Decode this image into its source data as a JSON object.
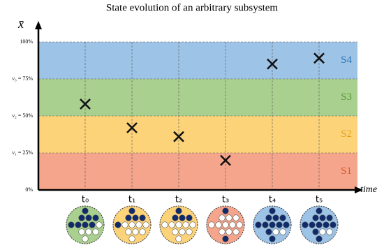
{
  "chart_data": {
    "type": "scatter",
    "title": "State evolution of an arbitrary subsystem",
    "y_label": "x̄",
    "x_label": "time",
    "categories": [
      "t₀",
      "t₁",
      "t₂",
      "t₃",
      "t₄",
      "t₅"
    ],
    "values": [
      58,
      42,
      36,
      20,
      85,
      89
    ],
    "ylim": [
      0,
      100
    ],
    "yticks": [
      {
        "value": 0,
        "label": "0%"
      },
      {
        "value": 25,
        "label": "ν₁ = 25%"
      },
      {
        "value": 50,
        "label": "ν₂ = 50%"
      },
      {
        "value": 75,
        "label": "ν₃ = 75%"
      },
      {
        "value": 100,
        "label": "100%"
      }
    ],
    "bands": [
      {
        "name": "S1",
        "from": 0,
        "to": 25,
        "color": "#f4a58c",
        "text_color": "#d9572e"
      },
      {
        "name": "S2",
        "from": 25,
        "to": 50,
        "color": "#fdd37a",
        "text_color": "#e3a21a"
      },
      {
        "name": "S3",
        "from": 50,
        "to": 75,
        "color": "#a9d08e",
        "text_color": "#5a9a3a"
      },
      {
        "name": "S4",
        "from": 75,
        "to": 100,
        "color": "#9dc3e6",
        "text_color": "#2e75b6"
      }
    ],
    "grid": true,
    "marker_color": "#111111"
  }
}
